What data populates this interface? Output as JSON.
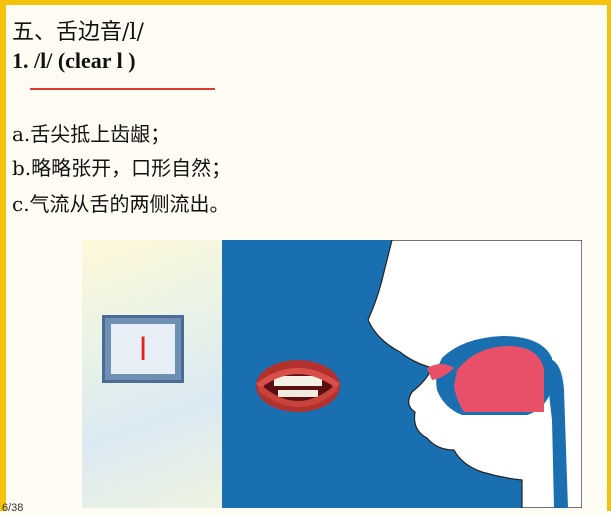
{
  "heading": "五、舌边音/l/",
  "subheading": "1. /l/ (clear l )",
  "lines": {
    "a": "a.舌尖抵上齿龈；",
    "b": "b.略略张开，口形自然；",
    "c": "c.气流从舌的两侧流出。"
  },
  "letter": "l",
  "page": "6/38",
  "colors": {
    "accent": "#f4c20d",
    "underline": "#e23b2e",
    "tongue": "#e8506a",
    "panel_blue": "#1a6fb0"
  }
}
